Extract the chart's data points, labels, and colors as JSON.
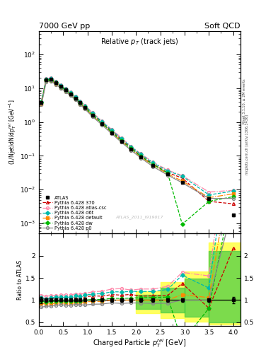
{
  "title_left": "7000 GeV pp",
  "title_right": "Soft QCD",
  "plot_title": "Relative p_{T} (track jets)",
  "xlabel": "Charged Particle p_{T}^{rel} [GeV]",
  "ylabel_main": "(1/Njet)dN/dp_{T}^{rel} [GeV^{-1}]",
  "ylabel_ratio": "Ratio to ATLAS",
  "watermark": "ATLAS_2011_I919017",
  "right_label1": "Rivet 3.1.10, ≥ 2M events",
  "right_label2": "mcplots.cern.ch [arXiv:1306.3436]",
  "atlas_x": [
    0.05,
    0.15,
    0.25,
    0.35,
    0.45,
    0.55,
    0.65,
    0.75,
    0.85,
    0.95,
    1.1,
    1.3,
    1.5,
    1.7,
    1.9,
    2.1,
    2.35,
    2.65,
    2.95,
    3.5,
    4.0
  ],
  "atlas_y": [
    3.8,
    18.0,
    18.5,
    14.5,
    11.2,
    8.8,
    6.8,
    5.0,
    3.7,
    2.7,
    1.6,
    0.9,
    0.48,
    0.27,
    0.155,
    0.092,
    0.052,
    0.029,
    0.016,
    0.0055,
    0.00175
  ],
  "atlas_yerr": [
    0.25,
    0.7,
    0.6,
    0.45,
    0.35,
    0.28,
    0.22,
    0.16,
    0.12,
    0.085,
    0.05,
    0.028,
    0.016,
    0.009,
    0.0055,
    0.0035,
    0.002,
    0.0012,
    0.0007,
    0.00025,
    0.00012
  ],
  "py370_x": [
    0.05,
    0.15,
    0.25,
    0.35,
    0.45,
    0.55,
    0.65,
    0.75,
    0.85,
    0.95,
    1.1,
    1.3,
    1.5,
    1.7,
    1.9,
    2.1,
    2.35,
    2.65,
    2.95,
    3.5,
    4.0
  ],
  "py370_y": [
    3.9,
    18.5,
    19.2,
    15.0,
    11.8,
    9.2,
    7.1,
    5.3,
    3.9,
    2.9,
    1.75,
    0.98,
    0.54,
    0.3,
    0.175,
    0.1,
    0.057,
    0.032,
    0.022,
    0.0045,
    0.0038
  ],
  "pycsc_x": [
    0.05,
    0.15,
    0.25,
    0.35,
    0.45,
    0.55,
    0.65,
    0.75,
    0.85,
    0.95,
    1.1,
    1.3,
    1.5,
    1.7,
    1.9,
    2.1,
    2.35,
    2.65,
    2.95,
    3.5,
    4.0
  ],
  "pycsc_y": [
    4.2,
    19.5,
    20.5,
    16.0,
    12.5,
    9.8,
    7.6,
    5.7,
    4.2,
    3.1,
    1.9,
    1.08,
    0.6,
    0.34,
    0.19,
    0.115,
    0.065,
    0.038,
    0.026,
    0.0085,
    0.0095
  ],
  "pyd6t_x": [
    0.05,
    0.15,
    0.25,
    0.35,
    0.45,
    0.55,
    0.65,
    0.75,
    0.85,
    0.95,
    1.1,
    1.3,
    1.5,
    1.7,
    1.9,
    2.1,
    2.35,
    2.65,
    2.95,
    3.5,
    4.0
  ],
  "pyd6t_y": [
    4.0,
    18.5,
    19.5,
    15.5,
    12.0,
    9.4,
    7.3,
    5.5,
    4.0,
    3.0,
    1.82,
    1.03,
    0.57,
    0.32,
    0.185,
    0.11,
    0.062,
    0.036,
    0.025,
    0.007,
    0.009
  ],
  "pydef_x": [
    0.05,
    0.15,
    0.25,
    0.35,
    0.45,
    0.55,
    0.65,
    0.75,
    0.85,
    0.95,
    1.1,
    1.3,
    1.5,
    1.7,
    1.9,
    2.1,
    2.35,
    2.65,
    2.95,
    3.5,
    4.0
  ],
  "pydef_y": [
    3.5,
    16.5,
    17.0,
    13.5,
    10.5,
    8.2,
    6.3,
    4.7,
    3.5,
    2.6,
    1.55,
    0.87,
    0.48,
    0.27,
    0.155,
    0.092,
    0.052,
    0.029,
    0.018,
    0.0058,
    0.0075
  ],
  "pydw_x": [
    0.05,
    0.15,
    0.25,
    0.35,
    0.45,
    0.55,
    0.65,
    0.75,
    0.85,
    0.95,
    1.1,
    1.3,
    1.5,
    1.7,
    1.9,
    2.1,
    2.35,
    2.65,
    2.95,
    3.5,
    4.0
  ],
  "pydw_y": [
    3.7,
    17.2,
    18.0,
    14.2,
    11.0,
    8.6,
    6.6,
    4.9,
    3.6,
    2.7,
    1.62,
    0.91,
    0.5,
    0.28,
    0.162,
    0.097,
    0.055,
    0.031,
    0.00095,
    0.0045,
    0.0062
  ],
  "pyp0_x": [
    0.05,
    0.15,
    0.25,
    0.35,
    0.45,
    0.55,
    0.65,
    0.75,
    0.85,
    0.95,
    1.1,
    1.3,
    1.5,
    1.7,
    1.9,
    2.1,
    2.35,
    2.65,
    2.95,
    3.5,
    4.0
  ],
  "pyp0_y": [
    3.2,
    15.5,
    16.0,
    12.8,
    10.0,
    7.8,
    6.0,
    4.5,
    3.3,
    2.4,
    1.45,
    0.82,
    0.45,
    0.25,
    0.145,
    0.086,
    0.048,
    0.027,
    0.016,
    0.0055,
    0.0055
  ],
  "atlas_color": "#000000",
  "py370_color": "#cc0000",
  "pycsc_color": "#ff88aa",
  "pyd6t_color": "#00bbaa",
  "pydef_color": "#ff8800",
  "pydw_color": "#00bb00",
  "pyp0_color": "#888888",
  "xlim": [
    0.0,
    4.15
  ],
  "ylim_main": [
    0.0005,
    500
  ],
  "ylim_ratio": [
    0.42,
    2.5
  ],
  "ratio_yticks": [
    0.5,
    1.0,
    1.5,
    2.0
  ],
  "ratio_yticklabels": [
    "0.5",
    "1",
    "1.5",
    "2"
  ]
}
